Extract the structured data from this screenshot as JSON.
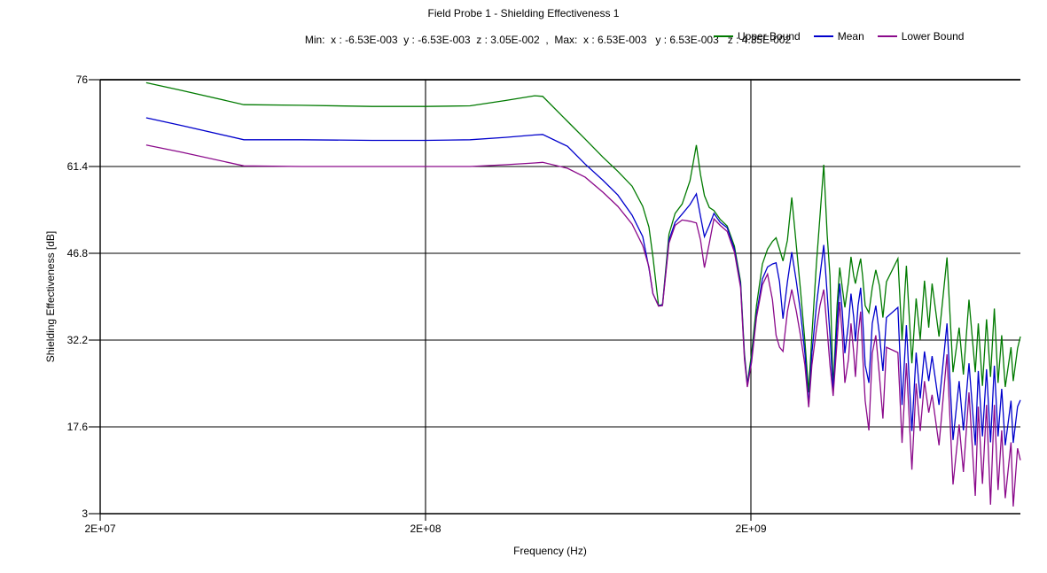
{
  "header": {
    "title": "Field Probe 1 - Shielding Effectiveness 1",
    "subtitle": "Min:  x : -6.53E-003  y : -6.53E-003  z : 3.05E-002  ,  Max:  x : 6.53E-003   y : 6.53E-003   z : 4.35E-002"
  },
  "chart_data": {
    "type": "line",
    "title": "Field Probe 1 - Shielding Effectiveness 1",
    "xlabel": "Frequency (Hz)",
    "ylabel": "Shielding Effectiveness [dB]",
    "x_scale": "log",
    "grid": true,
    "legend_position": "top-right",
    "xlim": [
      20000000.0,
      13500000000.0
    ],
    "ylim": [
      3,
      76
    ],
    "x_ticks": [
      {
        "value": 20000000.0,
        "label": "2E+07"
      },
      {
        "value": 200000000.0,
        "label": "2E+08"
      },
      {
        "value": 2000000000.0,
        "label": "2E+09"
      }
    ],
    "y_ticks": [
      {
        "value": 76,
        "label": "76"
      },
      {
        "value": 61.4,
        "label": "61.4"
      },
      {
        "value": 46.8,
        "label": "46.8"
      },
      {
        "value": 32.2,
        "label": "32.2"
      },
      {
        "value": 17.6,
        "label": "17.6"
      },
      {
        "value": 3,
        "label": "3"
      }
    ],
    "x": [
      27700000.0,
      35600000.0,
      55300000.0,
      83100000.0,
      137000000.0,
      200000000.0,
      274000000.0,
      352000000.0,
      433000000.0,
      458000000.0,
      546000000.0,
      619000000.0,
      701000000.0,
      780000000.0,
      863000000.0,
      930000000.0,
      972000000.0,
      1000000000.0,
      1040000000.0,
      1070000000.0,
      1120000000.0,
      1170000000.0,
      1230000000.0,
      1300000000.0,
      1360000000.0,
      1400000000.0,
      1440000000.0,
      1490000000.0,
      1540000000.0,
      1610000000.0,
      1690000000.0,
      1780000000.0,
      1860000000.0,
      1910000000.0,
      1950000000.0,
      2010000000.0,
      2080000000.0,
      2170000000.0,
      2250000000.0,
      2330000000.0,
      2390000000.0,
      2450000000.0,
      2510000000.0,
      2590000000.0,
      2670000000.0,
      2760000000.0,
      2840000000.0,
      2930000000.0,
      3010000000.0,
      3080000000.0,
      3180000000.0,
      3260000000.0,
      3350000000.0,
      3430000000.0,
      3500000000.0,
      3580000000.0,
      3680000000.0,
      3750000000.0,
      3820000000.0,
      3890000000.0,
      3990000000.0,
      4060000000.0,
      4140000000.0,
      4190000000.0,
      4270000000.0,
      4350000000.0,
      4410000000.0,
      4490000000.0,
      4610000000.0,
      4720000000.0,
      4840000000.0,
      4970000000.0,
      5090000000.0,
      5220000000.0,
      5660000000.0,
      5830000000.0,
      6010000000.0,
      6250000000.0,
      6440000000.0,
      6630000000.0,
      6830000000.0,
      7040000000.0,
      7210000000.0,
      7570000000.0,
      8010000000.0,
      8360000000.0,
      8730000000.0,
      9000000000.0,
      9360000000.0,
      9790000000.0,
      10000000000.0,
      10300000000.0,
      10600000000.0,
      10900000000.0,
      11200000000.0,
      11500000000.0,
      11800000000.0,
      12100000000.0,
      12600000000.0,
      12800000000.0,
      13200000000.0,
      13500000000.0
    ],
    "series": [
      {
        "name": "Upper Bound",
        "color": "#007A00",
        "values": [
          75.5,
          74.2,
          71.8,
          71.7,
          71.5,
          71.5,
          71.6,
          72.5,
          73.3,
          73.2,
          69.0,
          66.0,
          63.0,
          60.6,
          58.1,
          54.7,
          51.2,
          46.2,
          38.0,
          38.2,
          50.0,
          53.5,
          55.1,
          59.0,
          65.0,
          60.0,
          56.5,
          54.5,
          54.0,
          52.5,
          51.4,
          48.0,
          42.0,
          30.0,
          24.8,
          30.0,
          38.0,
          45.0,
          47.5,
          48.8,
          49.4,
          47.5,
          45.5,
          49.0,
          56.2,
          48.0,
          40.7,
          32.0,
          23.4,
          33.0,
          45.0,
          53.0,
          61.7,
          50.0,
          43.0,
          23.9,
          38.0,
          44.4,
          41.0,
          37.7,
          42.0,
          46.2,
          43.0,
          41.7,
          44.0,
          45.9,
          43.0,
          38.0,
          36.8,
          41.0,
          44.0,
          41.3,
          36.0,
          42.0,
          45.9,
          32.3,
          44.7,
          28.3,
          39.2,
          32.3,
          42.2,
          34.3,
          41.7,
          32.8,
          46.1,
          26.8,
          34.3,
          26.4,
          39.0,
          26.8,
          35.0,
          24.5,
          35.7,
          26.0,
          37.5,
          25.0,
          33.0,
          24.3,
          31.0,
          25.3,
          30.8,
          32.8
        ]
      },
      {
        "name": "Mean",
        "color": "#0000CC",
        "values": [
          69.6,
          68.3,
          65.9,
          65.9,
          65.8,
          65.8,
          65.9,
          66.3,
          66.7,
          66.8,
          64.8,
          61.8,
          59.1,
          56.6,
          53.2,
          49.6,
          44.3,
          40.0,
          38.0,
          38.1,
          49.0,
          52.0,
          53.4,
          55.0,
          56.8,
          53.0,
          49.6,
          51.5,
          53.5,
          52.0,
          51.1,
          47.5,
          41.5,
          29.5,
          24.6,
          29.0,
          36.5,
          42.5,
          44.5,
          45.0,
          45.2,
          42.0,
          35.8,
          42.0,
          47.0,
          42.0,
          37.0,
          30.0,
          21.3,
          30.0,
          38.0,
          43.0,
          48.2,
          40.0,
          33.0,
          23.5,
          35.0,
          41.7,
          37.0,
          30.0,
          35.0,
          40.0,
          36.0,
          32.0,
          38.0,
          41.0,
          36.0,
          28.0,
          25.0,
          35.0,
          38.0,
          33.0,
          27.0,
          36.0,
          37.7,
          21.3,
          34.7,
          16.9,
          30.1,
          22.4,
          30.3,
          25.3,
          29.5,
          21.3,
          35.0,
          15.4,
          25.3,
          17.0,
          28.3,
          14.5,
          27.0,
          16.0,
          27.3,
          15.0,
          27.9,
          16.0,
          24.0,
          14.5,
          22.0,
          14.9,
          21.0,
          22.1
        ]
      },
      {
        "name": "Lower Bound",
        "color": "#8B0A8B",
        "values": [
          65.0,
          63.8,
          61.5,
          61.4,
          61.4,
          61.4,
          61.4,
          61.7,
          62.0,
          62.1,
          61.1,
          59.6,
          57.1,
          54.7,
          51.7,
          48.1,
          44.5,
          40.0,
          37.9,
          38.0,
          48.5,
          51.5,
          52.4,
          52.2,
          51.9,
          49.0,
          44.4,
          48.5,
          52.6,
          51.5,
          50.5,
          47.0,
          41.0,
          29.0,
          24.3,
          28.5,
          36.0,
          41.5,
          43.3,
          39.0,
          33.0,
          31.0,
          30.3,
          37.0,
          40.7,
          37.0,
          33.0,
          28.0,
          20.9,
          28.0,
          34.0,
          38.0,
          40.7,
          34.0,
          28.0,
          22.8,
          32.0,
          38.6,
          33.0,
          25.0,
          29.0,
          35.0,
          30.0,
          26.0,
          33.0,
          37.0,
          30.0,
          22.0,
          17.0,
          30.0,
          33.0,
          26.0,
          19.0,
          31.0,
          30.1,
          14.9,
          28.3,
          10.4,
          24.9,
          16.9,
          25.3,
          20.0,
          23.0,
          14.5,
          29.8,
          7.9,
          18.0,
          10.0,
          23.4,
          6.0,
          21.0,
          8.0,
          21.3,
          4.5,
          21.3,
          7.0,
          17.0,
          5.6,
          15.0,
          4.2,
          14.0,
          12.0
        ]
      }
    ]
  }
}
